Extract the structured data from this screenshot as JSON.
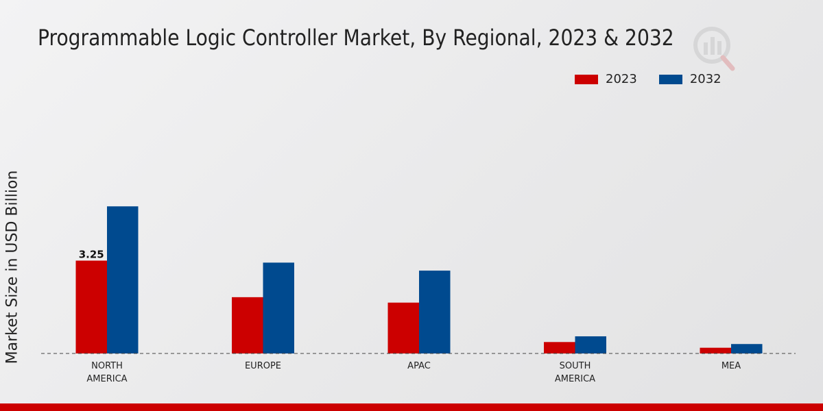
{
  "chart_data": {
    "type": "bar",
    "title": "Programmable Logic Controller Market, By Regional, 2023 & 2032",
    "ylabel": "Market Size in USD Billion",
    "xlabel": "",
    "categories": [
      "NORTH\nAMERICA",
      "EUROPE",
      "APAC",
      "SOUTH\nAMERICA",
      "MEA"
    ],
    "series": [
      {
        "name": "2023",
        "color": "#cc0000",
        "values": [
          3.25,
          1.97,
          1.78,
          0.4,
          0.2
        ]
      },
      {
        "name": "2032",
        "color": "#004a8f",
        "values": [
          5.15,
          3.18,
          2.9,
          0.6,
          0.33
        ]
      }
    ],
    "data_labels": [
      {
        "series": 0,
        "index": 0,
        "text": "3.25"
      }
    ],
    "ylim": [
      0,
      9.4
    ],
    "grid": false,
    "legend_position": "top-right"
  }
}
